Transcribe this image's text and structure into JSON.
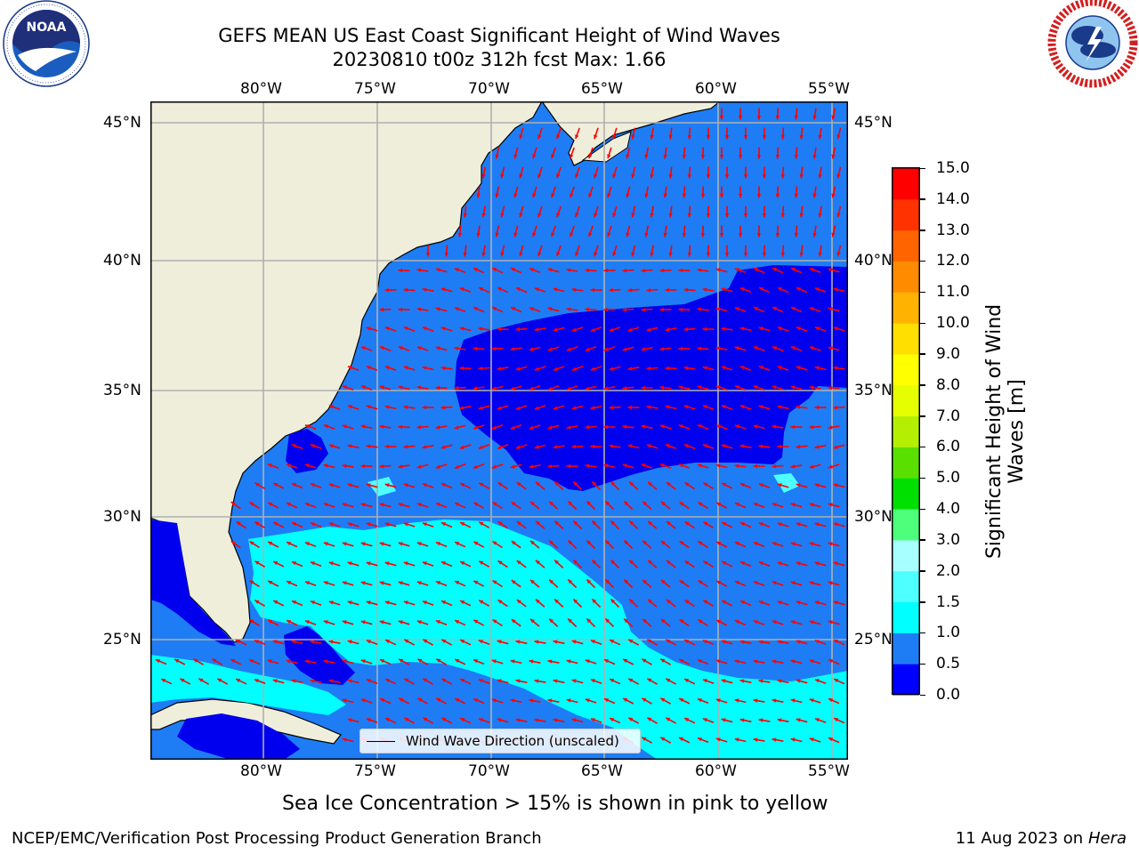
{
  "header": {
    "title_line1": "GEFS MEAN US East Coast Significant Height of Wind Waves",
    "title_line2": "20230810 t00z 312h fcst   Max: 1.66"
  },
  "logos": {
    "noaa_left": {
      "text": "NOAA",
      "ring_text": "NATIONAL OCEANIC AND ATMOSPHERIC ADMINISTRATION · U.S. DEPARTMENT OF COMMERCE"
    },
    "nws_right": {
      "ring_text": "NATIONAL WEATHER SERVICE"
    }
  },
  "map": {
    "lon_labels": [
      "80°W",
      "75°W",
      "70°W",
      "65°W",
      "60°W",
      "55°W"
    ],
    "lat_labels": [
      "45°N",
      "40°N",
      "35°N",
      "30°N",
      "25°N"
    ],
    "colors": {
      "land": "#efeedb",
      "deep_blue": "#0000ee",
      "mid_blue": "#1e7df5",
      "cyan": "#00ffff",
      "arrow": "#ff0000",
      "grid": "#b0b0b0"
    },
    "legend_label": "Wind Wave Direction (unscaled)"
  },
  "colorbar": {
    "label": "Significant Height of Wind Waves [m]",
    "ticks": [
      "0.0",
      "0.5",
      "1.0",
      "1.5",
      "2.0",
      "3.0",
      "4.0",
      "5.0",
      "6.0",
      "7.0",
      "8.0",
      "9.0",
      "10.0",
      "11.0",
      "12.0",
      "13.0",
      "14.0",
      "15.0"
    ],
    "colors": [
      "#0000ff",
      "#1e7df5",
      "#00ffff",
      "#4dffff",
      "#a8ffff",
      "#4dff7a",
      "#00e000",
      "#5ae000",
      "#b4ee00",
      "#e6ff00",
      "#ffff00",
      "#ffdf00",
      "#ffb300",
      "#ff8c00",
      "#ff6400",
      "#ff3200",
      "#ff0000"
    ]
  },
  "notes": {
    "sea_ice": "Sea Ice Concentration > 15% is shown in pink to yellow"
  },
  "footer": {
    "left": "NCEP/EMC/Verification Post Processing Product Generation Branch",
    "date": "11 Aug 2023 on",
    "host": "Hera"
  }
}
